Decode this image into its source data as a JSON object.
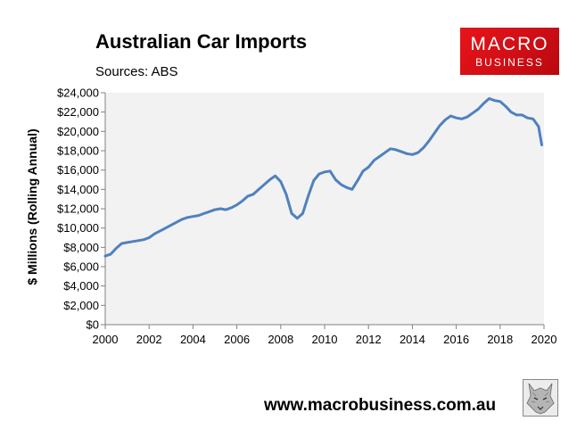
{
  "header": {
    "title": "Australian Car Imports",
    "subtitle": "Sources: ABS"
  },
  "logo": {
    "line1": "MACRO",
    "line2": "BUSINESS"
  },
  "footer": {
    "url": "www.macrobusiness.com.au"
  },
  "colors": {
    "series": "#4f81bd",
    "plot_bg": "#f2f2f2",
    "logo_red": "#e0141b"
  },
  "icons": {
    "wolf": "wolf-icon"
  },
  "chart_data": {
    "type": "line",
    "title": "Australian Car Imports",
    "subtitle": "Sources: ABS",
    "xlabel": "",
    "ylabel": "$ Millions (Rolling Annual)",
    "xlim": [
      2000,
      2020
    ],
    "ylim": [
      0,
      24000
    ],
    "xticks": [
      2000,
      2002,
      2004,
      2006,
      2008,
      2010,
      2012,
      2014,
      2016,
      2018,
      2020
    ],
    "xtick_labels": [
      "2000",
      "2002",
      "2004",
      "2006",
      "2008",
      "2010",
      "2012",
      "2014",
      "2016",
      "2018",
      "2020"
    ],
    "yticks": [
      0,
      2000,
      4000,
      6000,
      8000,
      10000,
      12000,
      14000,
      16000,
      18000,
      20000,
      22000,
      24000
    ],
    "ytick_labels": [
      "$0",
      "$2,000",
      "$4,000",
      "$6,000",
      "$8,000",
      "$10,000",
      "$12,000",
      "$14,000",
      "$16,000",
      "$18,000",
      "$20,000",
      "$22,000",
      "$24,000"
    ],
    "grid": false,
    "legend": "none",
    "series": [
      {
        "x": [
          2000.0,
          2000.25,
          2000.5,
          2000.75,
          2001.0,
          2001.25,
          2001.5,
          2001.75,
          2002.0,
          2002.25,
          2002.5,
          2002.75,
          2003.0,
          2003.25,
          2003.5,
          2003.75,
          2004.0,
          2004.25,
          2004.5,
          2004.75,
          2005.0,
          2005.25,
          2005.5,
          2005.75,
          2006.0,
          2006.25,
          2006.5,
          2006.75,
          2007.0,
          2007.25,
          2007.5,
          2007.75,
          2008.0,
          2008.25,
          2008.5,
          2008.75,
          2009.0,
          2009.25,
          2009.5,
          2009.75,
          2010.0,
          2010.25,
          2010.5,
          2010.75,
          2011.0,
          2011.25,
          2011.5,
          2011.75,
          2012.0,
          2012.25,
          2012.5,
          2012.75,
          2013.0,
          2013.25,
          2013.5,
          2013.75,
          2014.0,
          2014.25,
          2014.5,
          2014.75,
          2015.0,
          2015.25,
          2015.5,
          2015.75,
          2016.0,
          2016.25,
          2016.5,
          2016.75,
          2017.0,
          2017.25,
          2017.5,
          2017.75,
          2018.0,
          2018.25,
          2018.5,
          2018.75,
          2019.0,
          2019.25,
          2019.5,
          2019.75,
          2019.9
        ],
        "values": [
          7100,
          7300,
          7900,
          8400,
          8500,
          8600,
          8700,
          8800,
          9000,
          9400,
          9700,
          10000,
          10300,
          10600,
          10900,
          11100,
          11200,
          11300,
          11500,
          11700,
          11900,
          12000,
          11900,
          12100,
          12400,
          12800,
          13300,
          13500,
          14000,
          14500,
          15000,
          15400,
          14800,
          13500,
          11500,
          11000,
          11500,
          13300,
          14900,
          15600,
          15800,
          15900,
          15000,
          14500,
          14200,
          14000,
          14900,
          15900,
          16300,
          17000,
          17400,
          17800,
          18200,
          18100,
          17900,
          17700,
          17600,
          17800,
          18300,
          19000,
          19800,
          20600,
          21200,
          21600,
          21400,
          21300,
          21500,
          21900,
          22300,
          22900,
          23400,
          23200,
          23100,
          22600,
          22000,
          21700,
          21700,
          21400,
          21300,
          20500,
          18600
        ]
      }
    ]
  }
}
